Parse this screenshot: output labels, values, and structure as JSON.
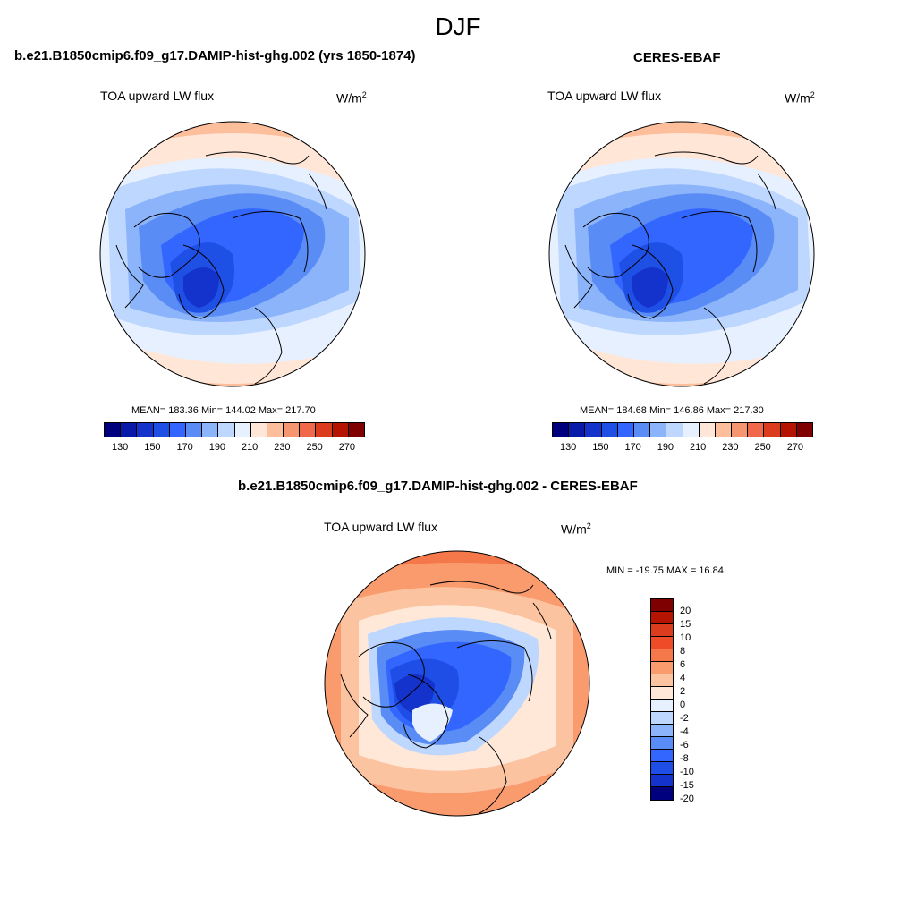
{
  "season": "DJF",
  "panels": [
    {
      "title": "b.e21.B1850cmip6.f09_g17.DAMIP-hist-ghg.002 (yrs 1850-1874)",
      "variable": "TOA upward LW flux",
      "units": "W/m",
      "units_sup": "2",
      "stats": "MEAN= 183.36  Min= 144.02  Max= 217.70"
    },
    {
      "title": "CERES-EBAF",
      "variable": "TOA upward LW flux",
      "units": "W/m",
      "units_sup": "2",
      "stats": "MEAN= 184.68  Min= 146.86  Max= 217.30"
    },
    {
      "title": "b.e21.B1850cmip6.f09_g17.DAMIP-hist-ghg.002 - CERES-EBAF",
      "variable": "TOA upward LW flux",
      "units": "W/m",
      "units_sup": "2",
      "stats": "MIN = -19.75 MAX =  16.84"
    }
  ],
  "chart_data": [
    {
      "type": "heatmap",
      "projection": "north polar stereographic",
      "title": "b.e21.B1850cmip6.f09_g17.DAMIP-hist-ghg.002 (yrs 1850-1874)",
      "variable": "TOA upward LW flux",
      "units": "W/m2",
      "mean": 183.36,
      "min": 144.02,
      "max": 217.7,
      "colorbar": {
        "orientation": "horizontal",
        "levels": [
          130,
          140,
          150,
          160,
          170,
          180,
          190,
          200,
          210,
          220,
          230,
          240,
          250,
          260,
          270
        ],
        "tick_labels": [
          "130",
          "150",
          "170",
          "190",
          "210",
          "230",
          "250",
          "270"
        ],
        "colors": [
          "#00007f",
          "#0a1aa8",
          "#1433cc",
          "#1e50e6",
          "#3366ff",
          "#5a8cf5",
          "#8cb4fa",
          "#bed7ff",
          "#e6f0ff",
          "#ffe6d7",
          "#fcbe9b",
          "#f5966e",
          "#f0694b",
          "#dc3c1e",
          "#b41400",
          "#7f0000"
        ]
      }
    },
    {
      "type": "heatmap",
      "projection": "north polar stereographic",
      "title": "CERES-EBAF",
      "variable": "TOA upward LW flux",
      "units": "W/m2",
      "mean": 184.68,
      "min": 146.86,
      "max": 217.3,
      "colorbar": {
        "orientation": "horizontal",
        "levels": [
          130,
          140,
          150,
          160,
          170,
          180,
          190,
          200,
          210,
          220,
          230,
          240,
          250,
          260,
          270
        ],
        "tick_labels": [
          "130",
          "150",
          "170",
          "190",
          "210",
          "230",
          "250",
          "270"
        ],
        "colors": [
          "#00007f",
          "#0a1aa8",
          "#1433cc",
          "#1e50e6",
          "#3366ff",
          "#5a8cf5",
          "#8cb4fa",
          "#bed7ff",
          "#e6f0ff",
          "#ffe6d7",
          "#fcbe9b",
          "#f5966e",
          "#f0694b",
          "#dc3c1e",
          "#b41400",
          "#7f0000"
        ]
      }
    },
    {
      "type": "heatmap",
      "projection": "north polar stereographic",
      "title": "b.e21.B1850cmip6.f09_g17.DAMIP-hist-ghg.002 - CERES-EBAF",
      "variable": "TOA upward LW flux",
      "units": "W/m2",
      "min": -19.75,
      "max": 16.84,
      "colorbar": {
        "orientation": "vertical",
        "levels": [
          20,
          15,
          10,
          8,
          6,
          4,
          2,
          0,
          -2,
          -4,
          -6,
          -8,
          -10,
          -15,
          -20
        ],
        "tick_labels": [
          "20",
          "15",
          "10",
          "8",
          "6",
          "4",
          "2",
          "0",
          "-2",
          "-4",
          "-6",
          "-8",
          "-10",
          "-15",
          "-20"
        ],
        "colors": [
          "#7f0000",
          "#b41400",
          "#dc3c1e",
          "#f04b28",
          "#f5784b",
          "#fa9b6e",
          "#fcc3a0",
          "#ffe8d7",
          "#e6f0ff",
          "#bed7ff",
          "#8cb4fa",
          "#5a8cf5",
          "#3366ff",
          "#1e4ee6",
          "#1433cc",
          "#00007f"
        ]
      }
    }
  ]
}
